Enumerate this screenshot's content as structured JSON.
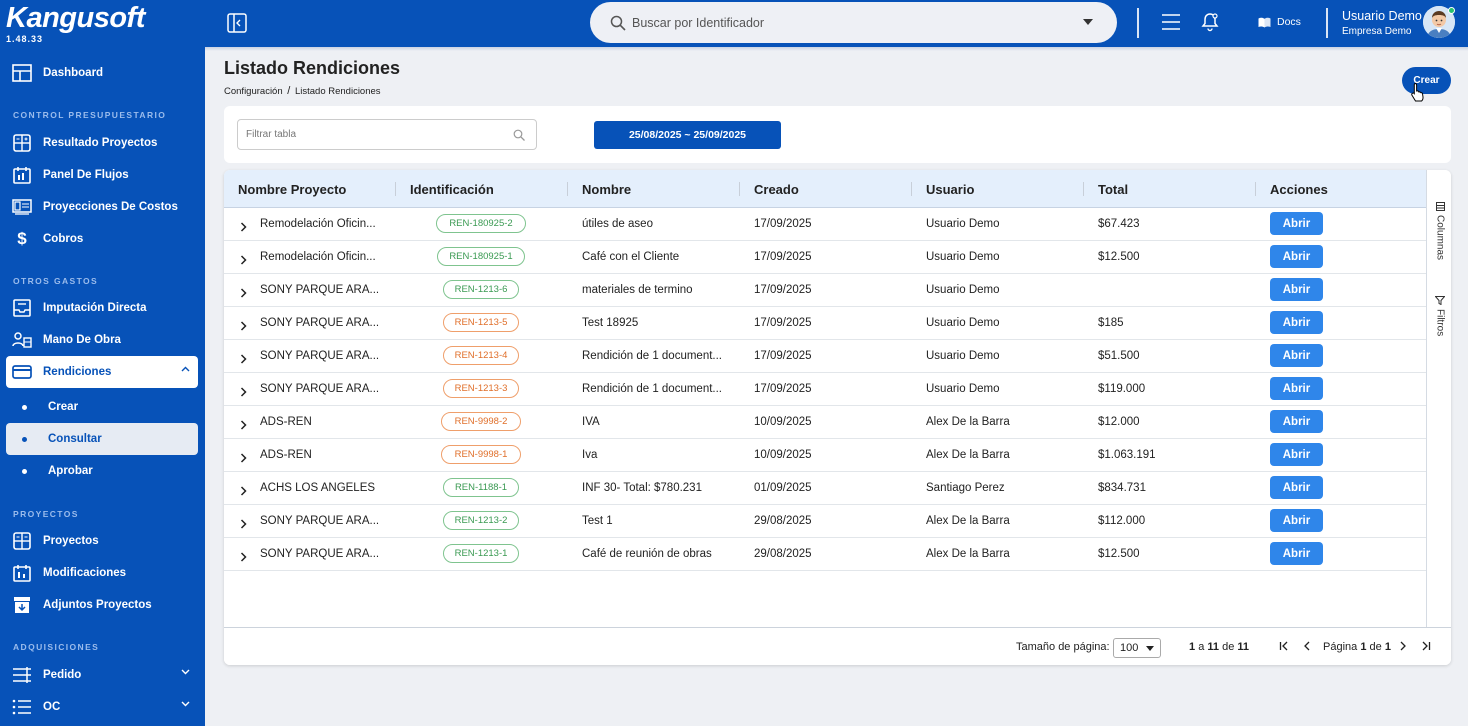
{
  "app": {
    "logo": "Kangusoft",
    "version": "1.48.33"
  },
  "sidebar": {
    "dashboard": "Dashboard",
    "sections": {
      "control": "CONTROL PRESUPUESTARIO",
      "otros": "OTROS GASTOS",
      "proyectos": "PROYECTOS",
      "adquisiciones": "ADQUISICIONES"
    },
    "items": {
      "resultado": "Resultado Proyectos",
      "panel": "Panel De Flujos",
      "proyecciones": "Proyecciones De Costos",
      "cobros": "Cobros",
      "imputacion": "Imputación Directa",
      "mano": "Mano De Obra",
      "rendiciones": "Rendiciones",
      "crear": "Crear",
      "consultar": "Consultar",
      "aprobar": "Aprobar",
      "proyectos": "Proyectos",
      "modificaciones": "Modificaciones",
      "adjuntos": "Adjuntos Proyectos",
      "pedido": "Pedido",
      "oc": "OC"
    },
    "colors": {
      "bg": "#0752b8",
      "section": "#9bbcec"
    }
  },
  "topbar": {
    "search_placeholder": "Buscar por Identificador",
    "docs": "Docs",
    "user_name": "Usuario Demo",
    "company": "Empresa Demo"
  },
  "page": {
    "title": "Listado Rendiciones",
    "breadcrumb_parent": "Configuración",
    "breadcrumb_sep": "/",
    "breadcrumb_current": "Listado Rendiciones",
    "create_button": "Crear"
  },
  "filters": {
    "table_filter_placeholder": "Filtrar tabla",
    "date_range": "25/08/2025 ~ 25/09/2025"
  },
  "table": {
    "columns": [
      "Nombre Proyecto",
      "Identificación",
      "Nombre",
      "Creado",
      "Usuario",
      "Total",
      "Acciones"
    ],
    "action_label": "Abrir",
    "rows": [
      {
        "proyecto": "Remodelación Oficin...",
        "id": "REN-180925-2",
        "status": "green",
        "nombre": "útiles de aseo",
        "creado": "17/09/2025",
        "usuario": "Usuario Demo",
        "total": "$67.423"
      },
      {
        "proyecto": "Remodelación Oficin...",
        "id": "REN-180925-1",
        "status": "green",
        "nombre": "Café con el Cliente",
        "creado": "17/09/2025",
        "usuario": "Usuario Demo",
        "total": "$12.500"
      },
      {
        "proyecto": "SONY PARQUE ARA...",
        "id": "REN-1213-6",
        "status": "green",
        "nombre": "materiales de termino",
        "creado": "17/09/2025",
        "usuario": "Usuario Demo",
        "total": ""
      },
      {
        "proyecto": "SONY PARQUE ARA...",
        "id": "REN-1213-5",
        "status": "orange",
        "nombre": "Test 18925",
        "creado": "17/09/2025",
        "usuario": "Usuario Demo",
        "total": "$185"
      },
      {
        "proyecto": "SONY PARQUE ARA...",
        "id": "REN-1213-4",
        "status": "orange",
        "nombre": "Rendición de 1 document...",
        "creado": "17/09/2025",
        "usuario": "Usuario Demo",
        "total": "$51.500"
      },
      {
        "proyecto": "SONY PARQUE ARA...",
        "id": "REN-1213-3",
        "status": "orange",
        "nombre": "Rendición de 1 document...",
        "creado": "17/09/2025",
        "usuario": "Usuario Demo",
        "total": "$119.000"
      },
      {
        "proyecto": "ADS-REN",
        "id": "REN-9998-2",
        "status": "orange",
        "nombre": "IVA",
        "creado": "10/09/2025",
        "usuario": "Alex De la Barra",
        "total": "$12.000"
      },
      {
        "proyecto": "ADS-REN",
        "id": "REN-9998-1",
        "status": "orange",
        "nombre": "Iva",
        "creado": "10/09/2025",
        "usuario": "Alex De la Barra",
        "total": "$1.063.191"
      },
      {
        "proyecto": "ACHS LOS ANGELES",
        "id": "REN-1188-1",
        "status": "green",
        "nombre": "INF 30- Total: $780.231",
        "creado": "01/09/2025",
        "usuario": "Santiago Perez",
        "total": "$834.731"
      },
      {
        "proyecto": "SONY PARQUE ARA...",
        "id": "REN-1213-2",
        "status": "green",
        "nombre": "Test 1",
        "creado": "29/08/2025",
        "usuario": "Alex De la Barra",
        "total": "$112.000"
      },
      {
        "proyecto": "SONY PARQUE ARA...",
        "id": "REN-1213-1",
        "status": "green",
        "nombre": "Café de reunión de obras",
        "creado": "29/08/2025",
        "usuario": "Alex De la Barra",
        "total": "$12.500"
      }
    ],
    "side_tabs": {
      "columns": "Columnas",
      "filters": "Filtros"
    }
  },
  "pagination": {
    "page_size_label": "Tamaño de página:",
    "page_size": "100",
    "range_from": "1",
    "range_a": "a",
    "range_to": "11",
    "range_de": "de",
    "range_total": "11",
    "page_word": "Página",
    "page_current": "1",
    "page_de": "de",
    "page_total": "1"
  }
}
